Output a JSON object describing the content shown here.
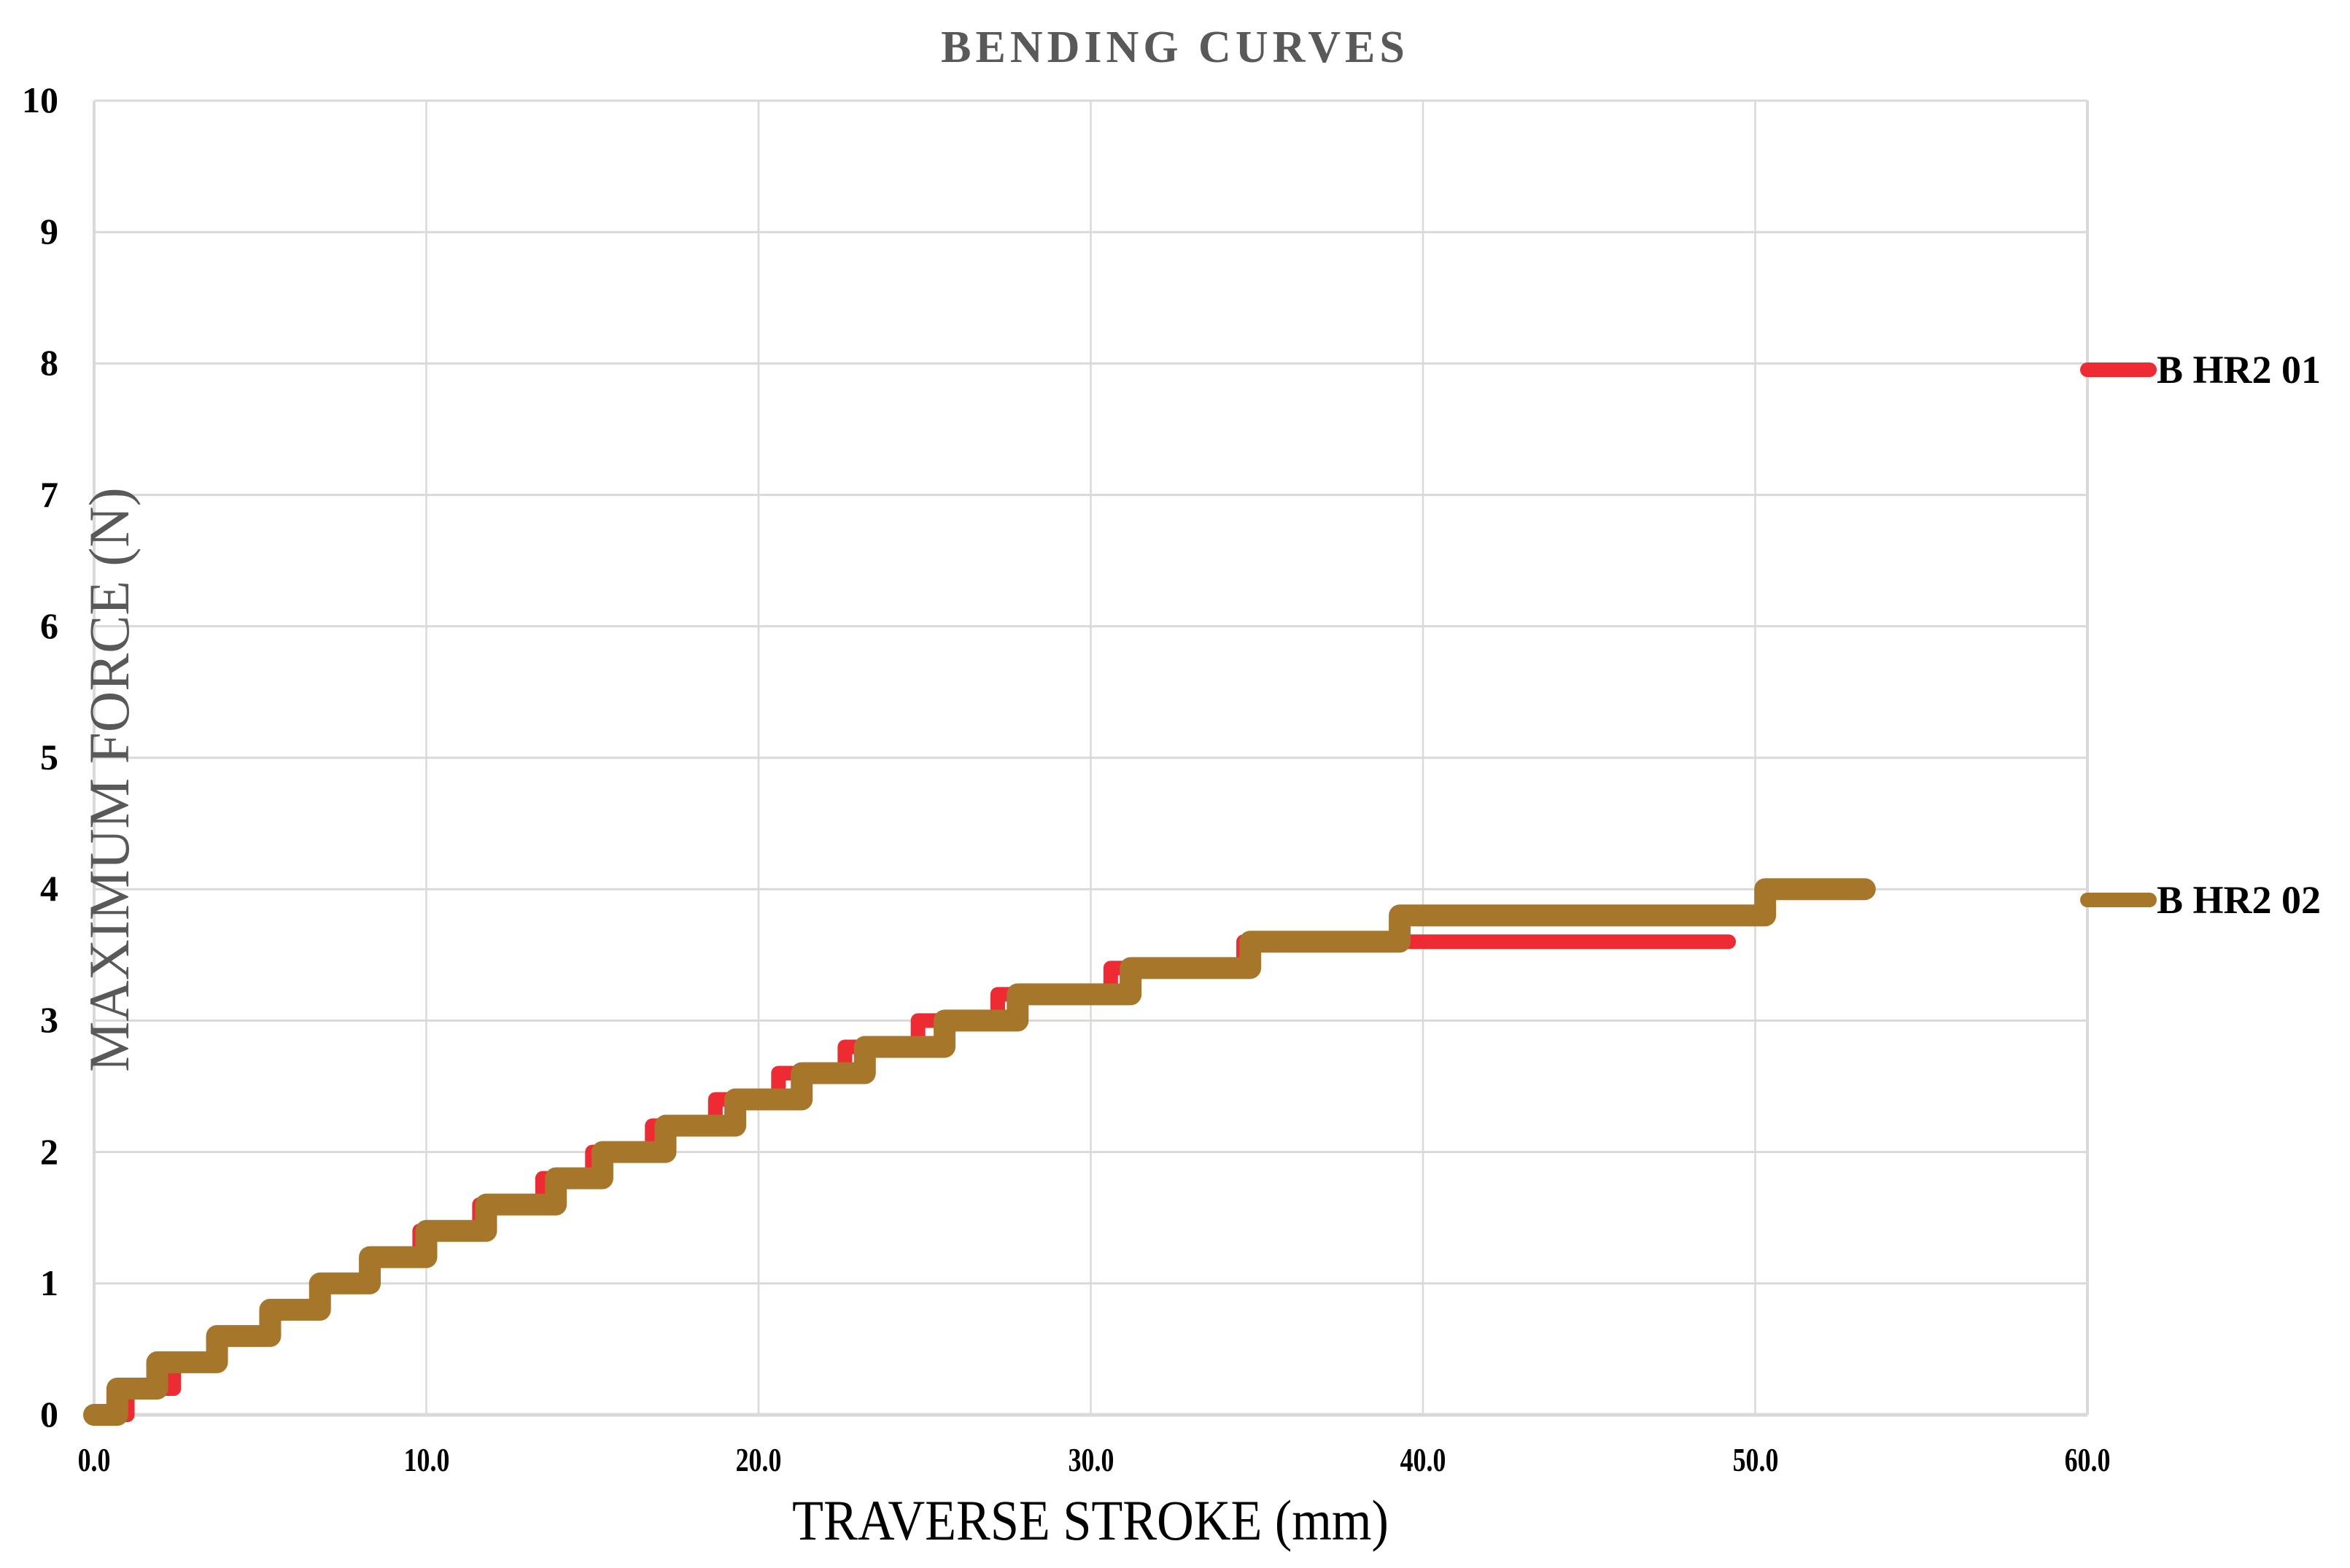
{
  "chart_data": {
    "type": "line",
    "title": "BENDING CURVES",
    "xlabel": "TRAVERSE STROKE (mm)",
    "ylabel": "MAXIMUM FORCE (N)",
    "xlim": [
      0,
      60
    ],
    "ylim": [
      0,
      10
    ],
    "x_ticks": [
      "0.0",
      "10.0",
      "20.0",
      "30.0",
      "40.0",
      "50.0",
      "60.0"
    ],
    "y_ticks": [
      "0",
      "1",
      "2",
      "3",
      "4",
      "5",
      "6",
      "7",
      "8",
      "9",
      "10"
    ],
    "grid": true,
    "legend_position": "right",
    "series": [
      {
        "name": "B HR2 01",
        "color": "#ee2a33",
        "step": true,
        "x": [
          0.0,
          1.0,
          2.4,
          3.8,
          5.3,
          6.8,
          8.2,
          9.8,
          11.6,
          13.5,
          15.0,
          16.8,
          18.7,
          20.6,
          22.6,
          24.8,
          27.2,
          30.6,
          34.6,
          49.2
        ],
        "y": [
          0.0,
          0.2,
          0.4,
          0.6,
          0.8,
          1.0,
          1.2,
          1.4,
          1.6,
          1.8,
          2.0,
          2.2,
          2.4,
          2.6,
          2.8,
          3.0,
          3.2,
          3.4,
          3.6,
          3.6
        ]
      },
      {
        "name": "B HR2 02",
        "color": "#a6762a",
        "step": true,
        "x": [
          0.0,
          0.7,
          1.9,
          3.7,
          5.3,
          6.8,
          8.3,
          10.0,
          11.8,
          13.9,
          15.3,
          17.2,
          19.3,
          21.3,
          23.2,
          25.6,
          27.8,
          31.2,
          34.8,
          39.3,
          50.3,
          53.3
        ],
        "y": [
          0.0,
          0.2,
          0.4,
          0.6,
          0.8,
          1.0,
          1.2,
          1.4,
          1.6,
          1.8,
          2.0,
          2.2,
          2.4,
          2.6,
          2.8,
          3.0,
          3.2,
          3.4,
          3.6,
          3.8,
          4.0,
          4.0
        ]
      }
    ]
  },
  "colors": {
    "grid": "#d9d9d9",
    "title": "#595959",
    "series1": "#ee2a33",
    "series2": "#a6762a"
  }
}
